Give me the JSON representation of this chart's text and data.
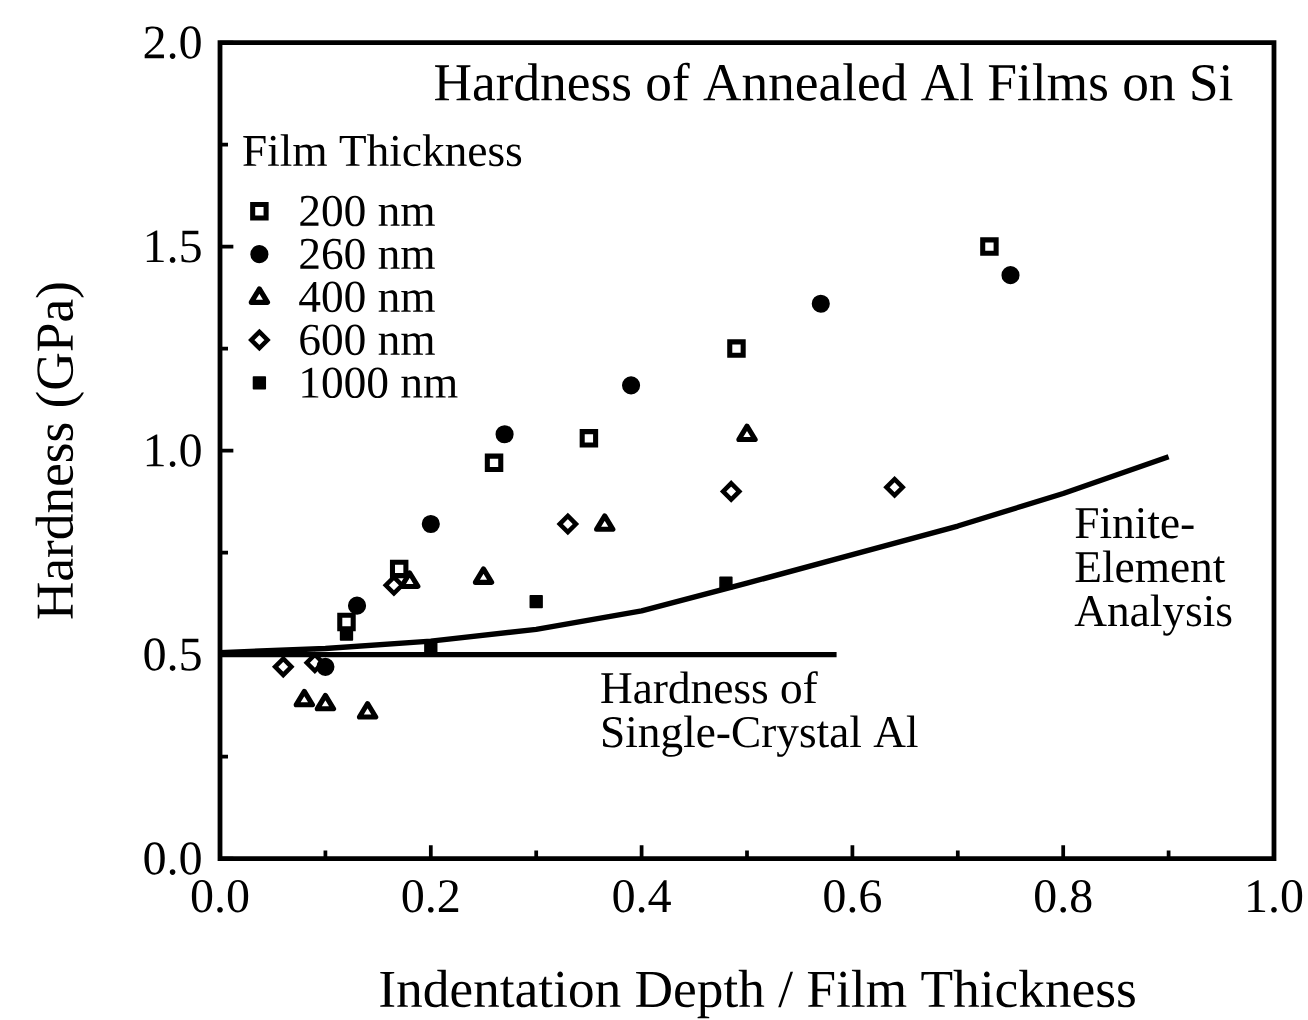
{
  "chart_data": {
    "type": "scatter",
    "title": "Hardness of Annealed Al Films on Si",
    "xlabel": "Indentation Depth / Film Thickness",
    "ylabel": "Hardness (GPa)",
    "legend_title": "Film Thickness",
    "legend": "top left",
    "xlim": [
      0,
      1
    ],
    "ylim": [
      0,
      2
    ],
    "xticks": [
      {
        "value": 0,
        "label": "0.0"
      },
      {
        "value": 0.1,
        "label": null
      },
      {
        "value": 0.2,
        "label": "0.2"
      },
      {
        "value": 0.3,
        "label": null
      },
      {
        "value": 0.4,
        "label": "0.4"
      },
      {
        "value": 0.5,
        "label": null
      },
      {
        "value": 0.6,
        "label": "0.6"
      },
      {
        "value": 0.7,
        "label": null
      },
      {
        "value": 0.8,
        "label": "0.8"
      },
      {
        "value": 0.9,
        "label": null
      },
      {
        "value": 1,
        "label": "1.0"
      }
    ],
    "yticks": [
      {
        "value": 0,
        "label": "0.0"
      },
      {
        "value": 0.25,
        "label": null
      },
      {
        "value": 0.5,
        "label": "0.5"
      },
      {
        "value": 0.75,
        "label": null
      },
      {
        "value": 1,
        "label": "1.0"
      },
      {
        "value": 1.25,
        "label": null
      },
      {
        "value": 1.5,
        "label": "1.5"
      },
      {
        "value": 1.75,
        "label": null
      },
      {
        "value": 2,
        "label": "2.0"
      }
    ],
    "series": [
      {
        "name": "200 nm",
        "marker": "square",
        "color": "#000000",
        "x": [
          0.12,
          0.17,
          0.26,
          0.35,
          0.49,
          0.73
        ],
        "values": [
          0.58,
          0.71,
          0.97,
          1.03,
          1.25,
          1.5
        ]
      },
      {
        "name": "260 nm",
        "marker": "circle",
        "color": "#000000",
        "x": [
          0.1,
          0.13,
          0.2,
          0.27,
          0.39,
          0.57,
          0.75
        ],
        "values": [
          0.47,
          0.62,
          0.82,
          1.04,
          1.16,
          1.36,
          1.43
        ]
      },
      {
        "name": "400 nm",
        "marker": "triangle",
        "color": "#000000",
        "x": [
          0.08,
          0.1,
          0.14,
          0.18,
          0.25,
          0.365,
          0.5
        ],
        "values": [
          0.39,
          0.38,
          0.36,
          0.68,
          0.69,
          0.82,
          1.04
        ]
      },
      {
        "name": "600 nm",
        "marker": "diamond",
        "color": "#000000",
        "x": [
          0.06,
          0.09,
          0.165,
          0.33,
          0.485,
          0.64
        ],
        "values": [
          0.47,
          0.48,
          0.67,
          0.82,
          0.9,
          0.91
        ]
      },
      {
        "name": "1000 nm",
        "marker": "square",
        "color": "#000000",
        "x": [
          0.12,
          0.2,
          0.3,
          0.48
        ],
        "values": [
          0.55,
          0.52,
          0.63,
          0.675
        ]
      },
      {
        "type": "line",
        "marker": "none",
        "line_style": "solid",
        "color": "#000000",
        "x": [
          0,
          0.585
        ],
        "values": [
          0.5,
          0.5
        ]
      },
      {
        "type": "line",
        "marker": "none",
        "line_style": "solid",
        "color": "#000000",
        "x": [
          0,
          0.1,
          0.2,
          0.3,
          0.4,
          0.5,
          0.6,
          0.7,
          0.8,
          0.9
        ],
        "values": [
          0.505,
          0.515,
          0.533,
          0.562,
          0.607,
          0.675,
          0.745,
          0.815,
          0.895,
          0.985
        ]
      }
    ],
    "annotations": [
      {
        "text": "Hardness of Single-Crystal Al",
        "x": 0.36,
        "y": 0.5
      },
      {
        "text": "Finite-Element Analysis",
        "x": 0.81,
        "y": 0.9
      }
    ]
  }
}
